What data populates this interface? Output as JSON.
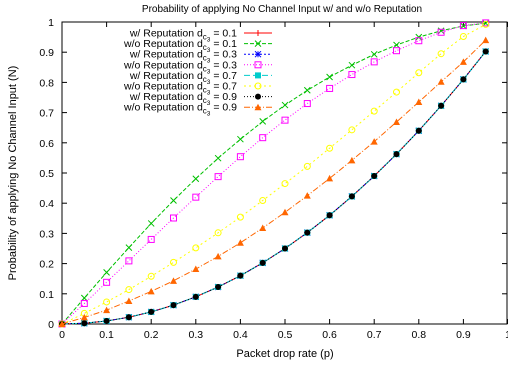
{
  "chart_data": {
    "type": "line",
    "title": "Probability of applying No Channel Input w/ and w/o Reputation",
    "xlabel": "Packet drop rate (p)",
    "ylabel": "Probability of applying No Channel Input (N)",
    "xlim": [
      0,
      1
    ],
    "ylim": [
      0,
      1
    ],
    "xticks": [
      "0",
      "0.1",
      "0.2",
      "0.3",
      "0.4",
      "0.5",
      "0.6",
      "0.7",
      "0.8",
      "0.9",
      "1"
    ],
    "yticks": [
      "0",
      "0.1",
      "0.2",
      "0.3",
      "0.4",
      "0.5",
      "0.6",
      "0.7",
      "0.8",
      "0.9",
      "1"
    ],
    "grid": false,
    "legend_position": "top-left",
    "x": [
      0,
      0.05,
      0.1,
      0.15,
      0.2,
      0.25,
      0.3,
      0.35,
      0.4,
      0.45,
      0.5,
      0.55,
      0.6,
      0.65,
      0.7,
      0.75,
      0.8,
      0.85,
      0.9,
      0.95
    ],
    "series": [
      {
        "label_prefix": "w/ Reputation d",
        "label_sub": "c",
        "label_subsub": "3",
        "label_suffix": " = 0.1",
        "color": "#ff0000",
        "marker": "plus",
        "dash": "",
        "values": [
          0,
          0.0025,
          0.01,
          0.0225,
          0.04,
          0.0625,
          0.09,
          0.1225,
          0.16,
          0.2025,
          0.25,
          0.3025,
          0.36,
          0.4225,
          0.49,
          0.5625,
          0.64,
          0.7225,
          0.81,
          0.9025
        ]
      },
      {
        "label_prefix": "w/o Reputation d",
        "label_sub": "c",
        "label_subsub": "3",
        "label_suffix": " = 0.1",
        "color": "#00c000",
        "marker": "x",
        "dash": "4,2",
        "values": [
          0,
          0.086,
          0.171,
          0.253,
          0.333,
          0.409,
          0.481,
          0.549,
          0.612,
          0.671,
          0.725,
          0.774,
          0.818,
          0.857,
          0.893,
          0.924,
          0.95,
          0.971,
          0.987,
          0.996
        ]
      },
      {
        "label_prefix": "w/ Reputation d",
        "label_sub": "c",
        "label_subsub": "3",
        "label_suffix": " = 0.3",
        "color": "#0000ff",
        "marker": "star",
        "dash": "2,2",
        "values": [
          0,
          0.0025,
          0.01,
          0.0225,
          0.04,
          0.0625,
          0.09,
          0.1225,
          0.16,
          0.2025,
          0.25,
          0.3025,
          0.36,
          0.4225,
          0.49,
          0.5625,
          0.64,
          0.7225,
          0.81,
          0.9025
        ]
      },
      {
        "label_prefix": "w/o Reputation d",
        "label_sub": "c",
        "label_subsub": "3",
        "label_suffix": " = 0.3",
        "color": "#ff00ff",
        "marker": "square",
        "dash": "1,2",
        "values": [
          0,
          0.068,
          0.138,
          0.209,
          0.28,
          0.351,
          0.42,
          0.488,
          0.554,
          0.617,
          0.675,
          0.73,
          0.78,
          0.826,
          0.868,
          0.905,
          0.938,
          0.966,
          0.988,
          0.997
        ]
      },
      {
        "label_prefix": "w/ Reputation d",
        "label_sub": "c",
        "label_subsub": "3",
        "label_suffix": " = 0.7",
        "color": "#00cccc",
        "marker": "square-filled",
        "dash": "6,3",
        "values": [
          0,
          0.0025,
          0.01,
          0.0225,
          0.04,
          0.0625,
          0.09,
          0.1225,
          0.16,
          0.2025,
          0.25,
          0.3025,
          0.36,
          0.4225,
          0.49,
          0.5625,
          0.64,
          0.7225,
          0.81,
          0.9025
        ]
      },
      {
        "label_prefix": "w/o Reputation d",
        "label_sub": "c",
        "label_subsub": "3",
        "label_suffix": " = 0.7",
        "color": "#ffff00",
        "marker": "circle",
        "dash": "2,3",
        "values": [
          0,
          0.035,
          0.073,
          0.114,
          0.158,
          0.204,
          0.252,
          0.302,
          0.354,
          0.409,
          0.465,
          0.522,
          0.582,
          0.643,
          0.705,
          0.768,
          0.832,
          0.895,
          0.952,
          0.992
        ]
      },
      {
        "label_prefix": "w/ Reputation d",
        "label_sub": "c",
        "label_subsub": "3",
        "label_suffix": " = 0.9",
        "color": "#000000",
        "marker": "circle-filled",
        "dash": "1,2",
        "values": [
          0,
          0.0025,
          0.01,
          0.0225,
          0.04,
          0.0625,
          0.09,
          0.1225,
          0.16,
          0.2025,
          0.25,
          0.3025,
          0.36,
          0.4225,
          0.49,
          0.5625,
          0.64,
          0.7225,
          0.81,
          0.9025
        ]
      },
      {
        "label_prefix": "w/o Reputation d",
        "label_sub": "c",
        "label_subsub": "3",
        "label_suffix": " = 0.9",
        "color": "#ff6600",
        "marker": "triangle-filled",
        "dash": "6,2,1,2",
        "values": [
          0,
          0.022,
          0.046,
          0.076,
          0.108,
          0.143,
          0.182,
          0.224,
          0.269,
          0.318,
          0.37,
          0.425,
          0.482,
          0.542,
          0.604,
          0.669,
          0.735,
          0.802,
          0.868,
          0.94
        ]
      }
    ]
  }
}
